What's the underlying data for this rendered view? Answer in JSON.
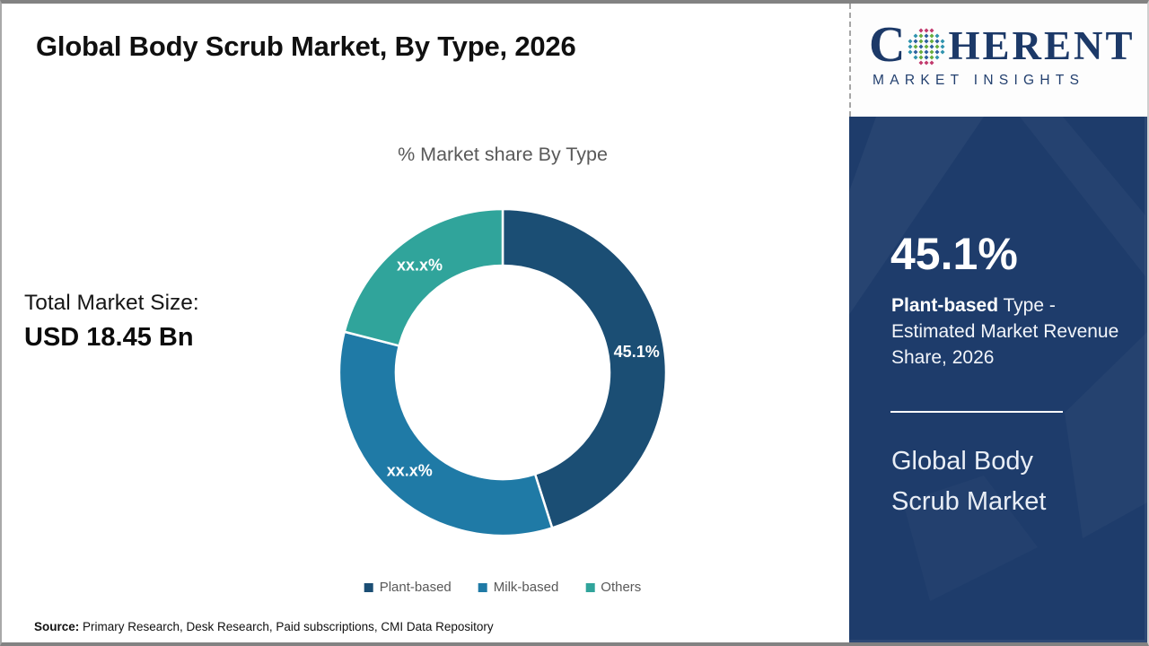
{
  "header": {
    "title": "Global Body Scrub Market, By Type, 2026"
  },
  "left_panel": {
    "total_label": "Total Market Size:",
    "total_value": "USD 18.45 Bn"
  },
  "chart_data": {
    "type": "pie",
    "donut": true,
    "title": "% Market share By Type",
    "categories": [
      "Plant-based",
      "Milk-based",
      "Others"
    ],
    "values": [
      45.1,
      33.9,
      21.0
    ],
    "slice_labels": [
      "45.1%",
      "xx.x%",
      "xx.x%"
    ],
    "colors": [
      "#1b4e74",
      "#1f7aa6",
      "#30a49b"
    ],
    "label_color": "#ffffff",
    "start_angle_deg": 0,
    "legend_position": "bottom"
  },
  "footer": {
    "source_label": "Source:",
    "source_text": " Primary Research, Desk Research, Paid subscriptions, CMI Data Repository"
  },
  "sidebar": {
    "logo": {
      "word_start": "C",
      "word_rest": "HERENT",
      "subtitle": "MARKET INSIGHTS",
      "globe_icon": "dot-globe-icon"
    },
    "stat_value": "45.1%",
    "stat_desc_bold": "Plant-based",
    "stat_desc_rest": " Type - Estimated Market Revenue Share, 2026",
    "panel_title": "Global Body Scrub Market",
    "colors": {
      "panel_bg": "#1e3c6b",
      "logo_navy": "#1c3968"
    }
  }
}
